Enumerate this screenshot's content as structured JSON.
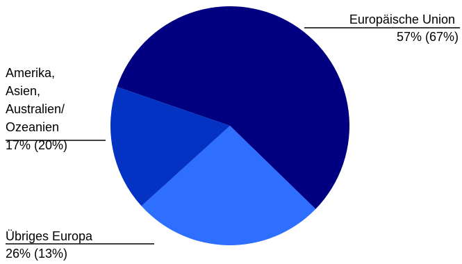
{
  "chart_data": {
    "type": "pie",
    "slices": [
      {
        "label_lines": [
          "Europäische Union"
        ],
        "value_text": "57% (67%)",
        "value": 57,
        "bracket_value": 67,
        "color": "#000080"
      },
      {
        "label_lines": [
          "Übriges Europa"
        ],
        "value_text": "26% (13%)",
        "value": 26,
        "bracket_value": 13,
        "color": "#2F6FFF"
      },
      {
        "label_lines": [
          "Amerika,",
          "Asien,",
          "Australien/",
          "Ozeanien"
        ],
        "value_text": "17% (20%)",
        "value": 17,
        "bracket_value": 20,
        "color": "#0433C4"
      }
    ],
    "start_angle_deg": -161,
    "direction": "clockwise"
  }
}
